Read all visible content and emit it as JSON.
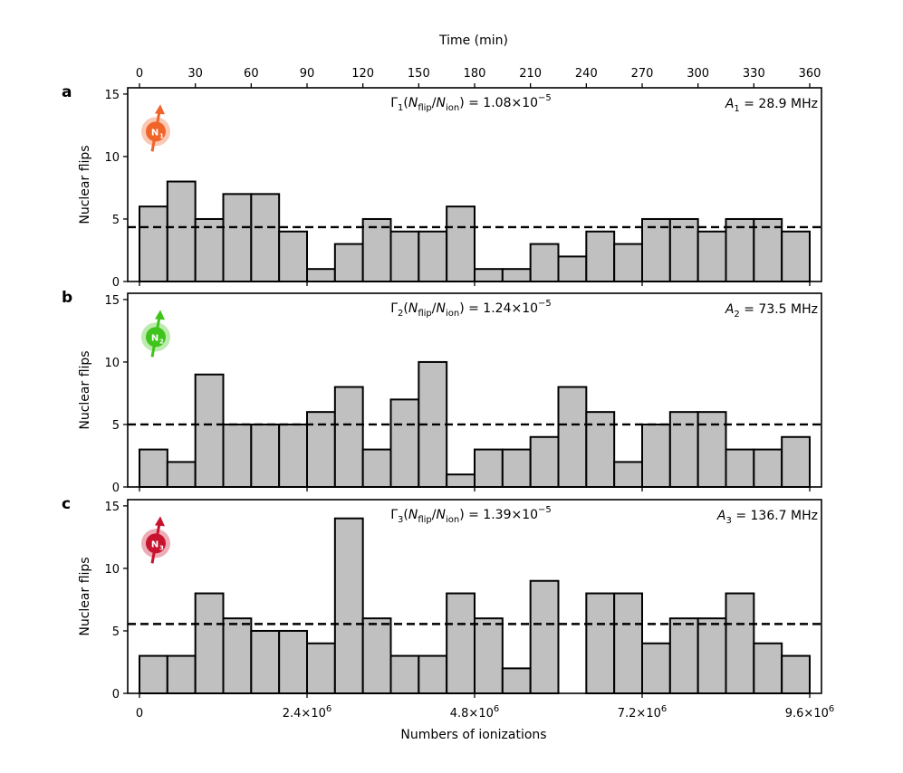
{
  "chart_data": {
    "type": "bar",
    "top_axis": {
      "label": "Time (min)",
      "range": [
        0,
        360
      ],
      "ticks": [
        0,
        30,
        60,
        90,
        120,
        150,
        180,
        210,
        240,
        270,
        300,
        330,
        360
      ],
      "tick_labels": [
        "0",
        "30",
        "60",
        "90",
        "120",
        "150",
        "180",
        "210",
        "240",
        "270",
        "300",
        "330",
        "360"
      ]
    },
    "x_axis": {
      "label": "Numbers of ionizations",
      "range": [
        0,
        9600000
      ],
      "tick_values": [
        0,
        2400000,
        4800000,
        7200000,
        9600000
      ],
      "tick_labels": [
        {
          "base": "0",
          "exp": ""
        },
        {
          "base": "2.4×10",
          "exp": "6"
        },
        {
          "base": "4.8×10",
          "exp": "6"
        },
        {
          "base": "7.2×10",
          "exp": "6"
        },
        {
          "base": "9.6×10",
          "exp": "6"
        }
      ]
    },
    "y_axis": {
      "label": "Nuclear flips",
      "range": [
        0,
        15.5
      ],
      "ticks": [
        0,
        5,
        10,
        15
      ],
      "tick_labels": [
        "0",
        "5",
        "10",
        "15"
      ]
    },
    "bins": 24,
    "panels": [
      {
        "letter": "a",
        "spin_label": "N",
        "spin_index": "1",
        "spin_color": "#f0642a",
        "values": [
          6,
          8,
          5,
          7,
          7,
          4,
          1,
          3,
          5,
          4,
          4,
          6,
          1,
          1,
          3,
          2,
          4,
          3,
          5,
          5,
          4,
          5,
          5,
          4
        ],
        "mean_line": 4.35,
        "rate": {
          "gamma": "Γ",
          "index": "1",
          "n1": "N",
          "n1_sub": "flip",
          "slash": "/",
          "n2": "N",
          "n2_sub": "ion",
          "value": ") = 1.08×10",
          "exp": "−5"
        },
        "coupling": {
          "symbol": "A",
          "index": "1",
          "value": " = 28.9 MHz"
        }
      },
      {
        "letter": "b",
        "spin_label": "N",
        "spin_index": "2",
        "spin_color": "#3ec41a",
        "values": [
          3,
          2,
          9,
          5,
          5,
          5,
          6,
          8,
          3,
          7,
          10,
          1,
          3,
          3,
          4,
          8,
          6,
          2,
          5,
          6,
          6,
          3,
          3,
          4
        ],
        "mean_line": 5.0,
        "rate": {
          "gamma": "Γ",
          "index": "2",
          "n1": "N",
          "n1_sub": "flip",
          "slash": "/",
          "n2": "N",
          "n2_sub": "ion",
          "value": ") = 1.24×10",
          "exp": "−5"
        },
        "coupling": {
          "symbol": "A",
          "index": "2",
          "value": " = 73.5 MHz"
        }
      },
      {
        "letter": "c",
        "spin_label": "N",
        "spin_index": "3",
        "spin_color": "#c8132e",
        "values": [
          3,
          3,
          8,
          6,
          5,
          5,
          4,
          14,
          6,
          3,
          3,
          8,
          6,
          2,
          9,
          0,
          8,
          8,
          4,
          6,
          6,
          8,
          4,
          3
        ],
        "mean_line": 5.55,
        "rate": {
          "gamma": "Γ",
          "index": "3",
          "n1": "N",
          "n1_sub": "flip",
          "slash": "/",
          "n2": "N",
          "n2_sub": "ion",
          "value": ") = 1.39×10",
          "exp": "−5"
        },
        "coupling": {
          "symbol": "A",
          "index": "3",
          "value": " = 136.7 MHz"
        }
      }
    ]
  }
}
